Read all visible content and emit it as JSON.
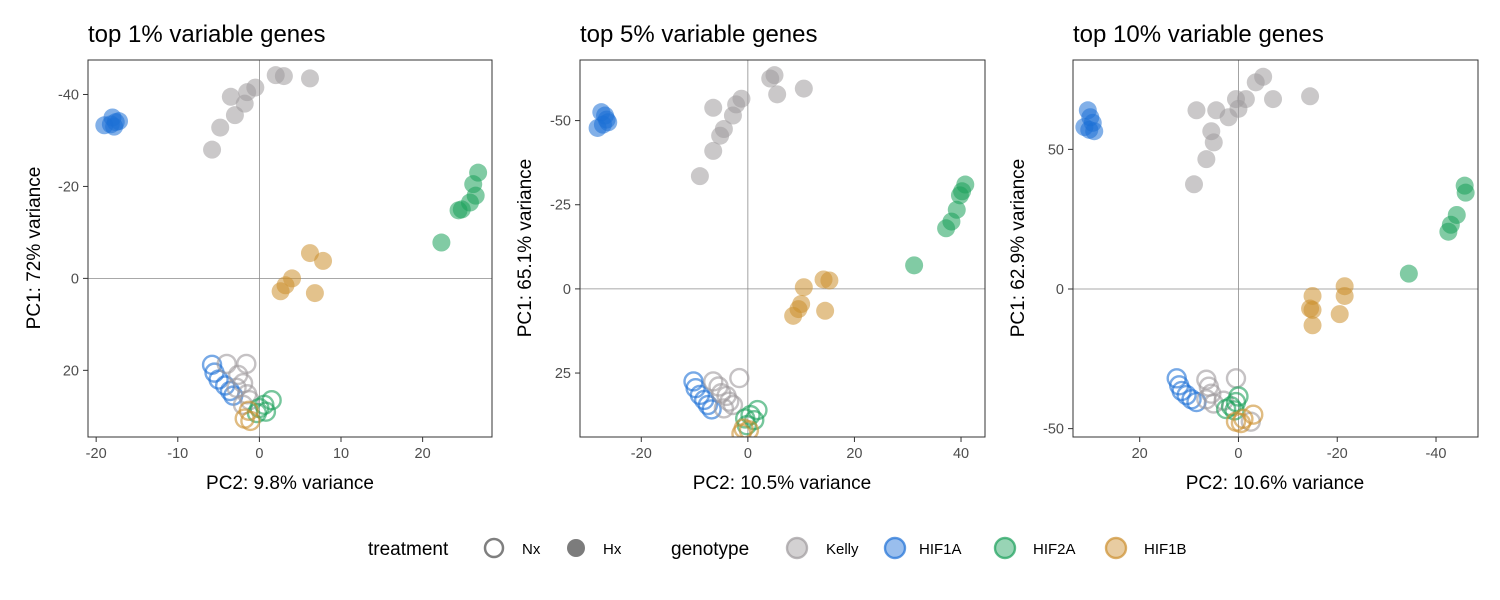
{
  "colors": {
    "Kelly": "#9e9a9c",
    "HIF1A": "#1c6fd6",
    "HIF2A": "#1aa05a",
    "HIF1B": "#cc8f2e"
  },
  "legend": {
    "treatment_title": "treatment",
    "treatment_items": [
      {
        "label": "Nx",
        "filled": false
      },
      {
        "label": "Hx",
        "filled": true
      }
    ],
    "genotype_title": "genotype",
    "genotype_items": [
      {
        "label": "Kelly"
      },
      {
        "label": "HIF1A"
      },
      {
        "label": "HIF2A"
      },
      {
        "label": "HIF1B"
      }
    ]
  },
  "chart_data": [
    {
      "type": "scatter",
      "title": "top 1% variable genes",
      "xlabel": "PC2: 9.8% variance",
      "ylabel": "PC1: 72% variance",
      "xlim": [
        -21,
        28.5
      ],
      "ylim": [
        -47.5,
        34.5
      ],
      "y_reversed": true,
      "x_reversed": false,
      "xticks": [
        -20,
        -10,
        0,
        10,
        20
      ],
      "yticks": [
        -40,
        -20,
        0,
        20
      ],
      "ytick_labels": [
        "-40",
        "-20",
        "0",
        "20"
      ],
      "reference_lines": {
        "x": 0,
        "y": 0
      },
      "grid": false,
      "points": [
        {
          "x": -18,
          "y": -35,
          "g": "HIF1A",
          "t": "Hx"
        },
        {
          "x": -17.6,
          "y": -34,
          "g": "HIF1A",
          "t": "Hx"
        },
        {
          "x": -18.2,
          "y": -33.5,
          "g": "HIF1A",
          "t": "Hx"
        },
        {
          "x": -17.8,
          "y": -33,
          "g": "HIF1A",
          "t": "Hx"
        },
        {
          "x": -19,
          "y": -33.3,
          "g": "HIF1A",
          "t": "Hx"
        },
        {
          "x": -17.2,
          "y": -34.2,
          "g": "HIF1A",
          "t": "Hx"
        },
        {
          "x": 3,
          "y": -44,
          "g": "Kelly",
          "t": "Hx"
        },
        {
          "x": 2,
          "y": -44.2,
          "g": "Kelly",
          "t": "Hx"
        },
        {
          "x": 6.2,
          "y": -43.5,
          "g": "Kelly",
          "t": "Hx"
        },
        {
          "x": -0.5,
          "y": -41.5,
          "g": "Kelly",
          "t": "Hx"
        },
        {
          "x": -1.5,
          "y": -40.5,
          "g": "Kelly",
          "t": "Hx"
        },
        {
          "x": -3.5,
          "y": -39.5,
          "g": "Kelly",
          "t": "Hx"
        },
        {
          "x": -1.8,
          "y": -38,
          "g": "Kelly",
          "t": "Hx"
        },
        {
          "x": -3,
          "y": -35.5,
          "g": "Kelly",
          "t": "Hx"
        },
        {
          "x": -4.8,
          "y": -32.8,
          "g": "Kelly",
          "t": "Hx"
        },
        {
          "x": -5.8,
          "y": -28,
          "g": "Kelly",
          "t": "Hx"
        },
        {
          "x": 26.8,
          "y": -23,
          "g": "HIF2A",
          "t": "Hx"
        },
        {
          "x": 26.2,
          "y": -20.5,
          "g": "HIF2A",
          "t": "Hx"
        },
        {
          "x": 26.5,
          "y": -18,
          "g": "HIF2A",
          "t": "Hx"
        },
        {
          "x": 25.8,
          "y": -16.5,
          "g": "HIF2A",
          "t": "Hx"
        },
        {
          "x": 24.8,
          "y": -15,
          "g": "HIF2A",
          "t": "Hx"
        },
        {
          "x": 24.4,
          "y": -14.8,
          "g": "HIF2A",
          "t": "Hx"
        },
        {
          "x": 22.3,
          "y": -7.8,
          "g": "HIF2A",
          "t": "Hx"
        },
        {
          "x": 6.2,
          "y": -5.5,
          "g": "HIF1B",
          "t": "Hx"
        },
        {
          "x": 7.8,
          "y": -3.8,
          "g": "HIF1B",
          "t": "Hx"
        },
        {
          "x": 4,
          "y": 0,
          "g": "HIF1B",
          "t": "Hx"
        },
        {
          "x": 3.2,
          "y": 1.5,
          "g": "HIF1B",
          "t": "Hx"
        },
        {
          "x": 2.6,
          "y": 2.8,
          "g": "HIF1B",
          "t": "Hx"
        },
        {
          "x": 6.8,
          "y": 3.2,
          "g": "HIF1B",
          "t": "Hx"
        },
        {
          "x": -5.8,
          "y": 18.8,
          "g": "HIF1A",
          "t": "Nx"
        },
        {
          "x": -5.5,
          "y": 20.5,
          "g": "HIF1A",
          "t": "Nx"
        },
        {
          "x": -5,
          "y": 22,
          "g": "HIF1A",
          "t": "Nx"
        },
        {
          "x": -4.2,
          "y": 23.3,
          "g": "HIF1A",
          "t": "Nx"
        },
        {
          "x": -3.6,
          "y": 24.5,
          "g": "HIF1A",
          "t": "Nx"
        },
        {
          "x": -3.2,
          "y": 25.5,
          "g": "HIF1A",
          "t": "Nx"
        },
        {
          "x": -4,
          "y": 18.6,
          "g": "Kelly",
          "t": "Nx"
        },
        {
          "x": -1.6,
          "y": 18.6,
          "g": "Kelly",
          "t": "Nx"
        },
        {
          "x": -2.6,
          "y": 21,
          "g": "Kelly",
          "t": "Nx"
        },
        {
          "x": -2,
          "y": 22.8,
          "g": "Kelly",
          "t": "Nx"
        },
        {
          "x": -2.8,
          "y": 23.8,
          "g": "Kelly",
          "t": "Nx"
        },
        {
          "x": -1.5,
          "y": 25.2,
          "g": "Kelly",
          "t": "Nx"
        },
        {
          "x": -1.2,
          "y": 26.5,
          "g": "Kelly",
          "t": "Nx"
        },
        {
          "x": -2,
          "y": 27.5,
          "g": "Kelly",
          "t": "Nx"
        },
        {
          "x": 1.5,
          "y": 26.5,
          "g": "HIF2A",
          "t": "Nx"
        },
        {
          "x": 0.6,
          "y": 27.5,
          "g": "HIF2A",
          "t": "Nx"
        },
        {
          "x": 0,
          "y": 28.2,
          "g": "HIF2A",
          "t": "Nx"
        },
        {
          "x": 0.8,
          "y": 29,
          "g": "HIF2A",
          "t": "Nx"
        },
        {
          "x": -0.3,
          "y": 29.3,
          "g": "HIF2A",
          "t": "Nx"
        },
        {
          "x": -1.3,
          "y": 28.8,
          "g": "HIF1B",
          "t": "Nx"
        },
        {
          "x": -1.8,
          "y": 30.5,
          "g": "HIF1B",
          "t": "Nx"
        },
        {
          "x": -1.1,
          "y": 31,
          "g": "HIF1B",
          "t": "Nx"
        }
      ]
    },
    {
      "type": "scatter",
      "title": "top 5% variable genes",
      "xlabel": "PC2: 10.5% variance",
      "ylabel": "PC1: 65.1% variance",
      "xlim": [
        -31.5,
        44.5
      ],
      "ylim": [
        -68,
        44
      ],
      "y_reversed": true,
      "x_reversed": false,
      "xticks": [
        -20,
        0,
        20,
        40
      ],
      "yticks": [
        -50,
        -25,
        0,
        25
      ],
      "ytick_labels": [
        "-50",
        "-25",
        "0",
        "25"
      ],
      "reference_lines": {
        "x": 0,
        "y": 0
      },
      "grid": false,
      "points": [
        {
          "x": -26.8,
          "y": -51.5,
          "g": "HIF1A",
          "t": "Hx"
        },
        {
          "x": -26.5,
          "y": -50.3,
          "g": "HIF1A",
          "t": "Hx"
        },
        {
          "x": -26.2,
          "y": -49.5,
          "g": "HIF1A",
          "t": "Hx"
        },
        {
          "x": -27.2,
          "y": -48.8,
          "g": "HIF1A",
          "t": "Hx"
        },
        {
          "x": -27.5,
          "y": -52.5,
          "g": "HIF1A",
          "t": "Hx"
        },
        {
          "x": -28.2,
          "y": -47.8,
          "g": "HIF1A",
          "t": "Hx"
        },
        {
          "x": 4.2,
          "y": -62.5,
          "g": "Kelly",
          "t": "Hx"
        },
        {
          "x": 5,
          "y": -63.5,
          "g": "Kelly",
          "t": "Hx"
        },
        {
          "x": 10.5,
          "y": -59.5,
          "g": "Kelly",
          "t": "Hx"
        },
        {
          "x": 5.5,
          "y": -57.8,
          "g": "Kelly",
          "t": "Hx"
        },
        {
          "x": -1.2,
          "y": -56.5,
          "g": "Kelly",
          "t": "Hx"
        },
        {
          "x": -2.2,
          "y": -54.8,
          "g": "Kelly",
          "t": "Hx"
        },
        {
          "x": -6.5,
          "y": -53.8,
          "g": "Kelly",
          "t": "Hx"
        },
        {
          "x": -2.8,
          "y": -51.5,
          "g": "Kelly",
          "t": "Hx"
        },
        {
          "x": -4.5,
          "y": -47.5,
          "g": "Kelly",
          "t": "Hx"
        },
        {
          "x": -5.2,
          "y": -45.5,
          "g": "Kelly",
          "t": "Hx"
        },
        {
          "x": -6.5,
          "y": -41,
          "g": "Kelly",
          "t": "Hx"
        },
        {
          "x": -9,
          "y": -33.5,
          "g": "Kelly",
          "t": "Hx"
        },
        {
          "x": 40.8,
          "y": -31,
          "g": "HIF2A",
          "t": "Hx"
        },
        {
          "x": 40.2,
          "y": -29,
          "g": "HIF2A",
          "t": "Hx"
        },
        {
          "x": 39.8,
          "y": -27.8,
          "g": "HIF2A",
          "t": "Hx"
        },
        {
          "x": 39.2,
          "y": -23.5,
          "g": "HIF2A",
          "t": "Hx"
        },
        {
          "x": 38.2,
          "y": -20,
          "g": "HIF2A",
          "t": "Hx"
        },
        {
          "x": 37.2,
          "y": -18,
          "g": "HIF2A",
          "t": "Hx"
        },
        {
          "x": 31.2,
          "y": -7,
          "g": "HIF2A",
          "t": "Hx"
        },
        {
          "x": 15.3,
          "y": -2.5,
          "g": "HIF1B",
          "t": "Hx"
        },
        {
          "x": 14.2,
          "y": -2.8,
          "g": "HIF1B",
          "t": "Hx"
        },
        {
          "x": 10.5,
          "y": -0.5,
          "g": "HIF1B",
          "t": "Hx"
        },
        {
          "x": 10,
          "y": 4.5,
          "g": "HIF1B",
          "t": "Hx"
        },
        {
          "x": 9.5,
          "y": 6,
          "g": "HIF1B",
          "t": "Hx"
        },
        {
          "x": 14.5,
          "y": 6.5,
          "g": "HIF1B",
          "t": "Hx"
        },
        {
          "x": 8.5,
          "y": 8,
          "g": "HIF1B",
          "t": "Hx"
        },
        {
          "x": -10.2,
          "y": 27.5,
          "g": "HIF1A",
          "t": "Nx"
        },
        {
          "x": -9.8,
          "y": 29.5,
          "g": "HIF1A",
          "t": "Nx"
        },
        {
          "x": -9,
          "y": 31.5,
          "g": "HIF1A",
          "t": "Nx"
        },
        {
          "x": -8.2,
          "y": 33,
          "g": "HIF1A",
          "t": "Nx"
        },
        {
          "x": -7.5,
          "y": 34.5,
          "g": "HIF1A",
          "t": "Nx"
        },
        {
          "x": -6.8,
          "y": 35.8,
          "g": "HIF1A",
          "t": "Nx"
        },
        {
          "x": -1.6,
          "y": 26.5,
          "g": "Kelly",
          "t": "Nx"
        },
        {
          "x": -6.5,
          "y": 27.5,
          "g": "Kelly",
          "t": "Nx"
        },
        {
          "x": -5.5,
          "y": 29,
          "g": "Kelly",
          "t": "Nx"
        },
        {
          "x": -5,
          "y": 31,
          "g": "Kelly",
          "t": "Nx"
        },
        {
          "x": -4,
          "y": 31.8,
          "g": "Kelly",
          "t": "Nx"
        },
        {
          "x": -3.5,
          "y": 33.5,
          "g": "Kelly",
          "t": "Nx"
        },
        {
          "x": -2.8,
          "y": 34.5,
          "g": "Kelly",
          "t": "Nx"
        },
        {
          "x": -4.5,
          "y": 35.5,
          "g": "Kelly",
          "t": "Nx"
        },
        {
          "x": 1.8,
          "y": 36,
          "g": "HIF2A",
          "t": "Nx"
        },
        {
          "x": 0.5,
          "y": 37.5,
          "g": "HIF2A",
          "t": "Nx"
        },
        {
          "x": -0.5,
          "y": 38.5,
          "g": "HIF2A",
          "t": "Nx"
        },
        {
          "x": 1.2,
          "y": 39,
          "g": "HIF2A",
          "t": "Nx"
        },
        {
          "x": -0.2,
          "y": 40.5,
          "g": "HIF2A",
          "t": "Nx"
        },
        {
          "x": -0.8,
          "y": 41.5,
          "g": "HIF1B",
          "t": "Nx"
        },
        {
          "x": 0.2,
          "y": 42,
          "g": "HIF1B",
          "t": "Nx"
        },
        {
          "x": -1.2,
          "y": 43,
          "g": "HIF1B",
          "t": "Nx"
        }
      ]
    },
    {
      "type": "scatter",
      "title": "top 10% variable genes",
      "xlabel": "PC2: 10.6% variance",
      "ylabel": "PC1: 62.9% variance",
      "xlim": [
        33.5,
        -48.5
      ],
      "ylim": [
        82,
        -53
      ],
      "y_reversed": false,
      "x_reversed": true,
      "xticks": [
        20,
        0,
        -20,
        -40
      ],
      "yticks": [
        50,
        0,
        -50
      ],
      "ytick_labels": [
        "50",
        "0",
        "-50"
      ],
      "reference_lines": {
        "x": 0,
        "y": 0
      },
      "grid": false,
      "points": [
        {
          "x": 30.5,
          "y": 64,
          "g": "HIF1A",
          "t": "Hx"
        },
        {
          "x": 30,
          "y": 61.5,
          "g": "HIF1A",
          "t": "Hx"
        },
        {
          "x": 29.5,
          "y": 59.5,
          "g": "HIF1A",
          "t": "Hx"
        },
        {
          "x": 31.2,
          "y": 58,
          "g": "HIF1A",
          "t": "Hx"
        },
        {
          "x": 30.2,
          "y": 57,
          "g": "HIF1A",
          "t": "Hx"
        },
        {
          "x": 29.2,
          "y": 56.5,
          "g": "HIF1A",
          "t": "Hx"
        },
        {
          "x": -5,
          "y": 76,
          "g": "Kelly",
          "t": "Hx"
        },
        {
          "x": -3.5,
          "y": 74,
          "g": "Kelly",
          "t": "Hx"
        },
        {
          "x": -7,
          "y": 68,
          "g": "Kelly",
          "t": "Hx"
        },
        {
          "x": -14.5,
          "y": 69,
          "g": "Kelly",
          "t": "Hx"
        },
        {
          "x": -1.5,
          "y": 68,
          "g": "Kelly",
          "t": "Hx"
        },
        {
          "x": 0.5,
          "y": 68,
          "g": "Kelly",
          "t": "Hx"
        },
        {
          "x": 0,
          "y": 64.5,
          "g": "Kelly",
          "t": "Hx"
        },
        {
          "x": 4.5,
          "y": 64,
          "g": "Kelly",
          "t": "Hx"
        },
        {
          "x": 8.5,
          "y": 64,
          "g": "Kelly",
          "t": "Hx"
        },
        {
          "x": 2,
          "y": 61.5,
          "g": "Kelly",
          "t": "Hx"
        },
        {
          "x": 5.5,
          "y": 56.5,
          "g": "Kelly",
          "t": "Hx"
        },
        {
          "x": 5,
          "y": 52.5,
          "g": "Kelly",
          "t": "Hx"
        },
        {
          "x": 6.5,
          "y": 46.5,
          "g": "Kelly",
          "t": "Hx"
        },
        {
          "x": 9,
          "y": 37.5,
          "g": "Kelly",
          "t": "Hx"
        },
        {
          "x": -45.8,
          "y": 37,
          "g": "HIF2A",
          "t": "Hx"
        },
        {
          "x": -46,
          "y": 34.5,
          "g": "HIF2A",
          "t": "Hx"
        },
        {
          "x": -44.2,
          "y": 26.5,
          "g": "HIF2A",
          "t": "Hx"
        },
        {
          "x": -43,
          "y": 23,
          "g": "HIF2A",
          "t": "Hx"
        },
        {
          "x": -42.5,
          "y": 20.5,
          "g": "HIF2A",
          "t": "Hx"
        },
        {
          "x": -34.5,
          "y": 5.5,
          "g": "HIF2A",
          "t": "Hx"
        },
        {
          "x": -21.5,
          "y": 1,
          "g": "HIF1B",
          "t": "Hx"
        },
        {
          "x": -21.5,
          "y": -2.5,
          "g": "HIF1B",
          "t": "Hx"
        },
        {
          "x": -15,
          "y": -7.5,
          "g": "HIF1B",
          "t": "Hx"
        },
        {
          "x": -14.5,
          "y": -7,
          "g": "HIF1B",
          "t": "Hx"
        },
        {
          "x": -20.5,
          "y": -9,
          "g": "HIF1B",
          "t": "Hx"
        },
        {
          "x": -15,
          "y": -13,
          "g": "HIF1B",
          "t": "Hx"
        },
        {
          "x": -15,
          "y": -2.5,
          "g": "HIF1B",
          "t": "Hx"
        },
        {
          "x": 12.5,
          "y": -32,
          "g": "HIF1A",
          "t": "Nx"
        },
        {
          "x": 12,
          "y": -34.5,
          "g": "HIF1A",
          "t": "Nx"
        },
        {
          "x": 11.5,
          "y": -36.5,
          "g": "HIF1A",
          "t": "Nx"
        },
        {
          "x": 10.5,
          "y": -38,
          "g": "HIF1A",
          "t": "Nx"
        },
        {
          "x": 9.5,
          "y": -39.5,
          "g": "HIF1A",
          "t": "Nx"
        },
        {
          "x": 8.5,
          "y": -40.5,
          "g": "HIF1A",
          "t": "Nx"
        },
        {
          "x": 0.5,
          "y": -32,
          "g": "Kelly",
          "t": "Nx"
        },
        {
          "x": 6.5,
          "y": -32.5,
          "g": "Kelly",
          "t": "Nx"
        },
        {
          "x": 6,
          "y": -35,
          "g": "Kelly",
          "t": "Nx"
        },
        {
          "x": 5.5,
          "y": -37.5,
          "g": "Kelly",
          "t": "Nx"
        },
        {
          "x": 6.5,
          "y": -39.5,
          "g": "Kelly",
          "t": "Nx"
        },
        {
          "x": 5,
          "y": -41,
          "g": "Kelly",
          "t": "Nx"
        },
        {
          "x": -2.5,
          "y": -47.5,
          "g": "Kelly",
          "t": "Nx"
        },
        {
          "x": 3,
          "y": -40,
          "g": "Kelly",
          "t": "Nx"
        },
        {
          "x": 0,
          "y": -38.5,
          "g": "HIF2A",
          "t": "Nx"
        },
        {
          "x": 0.5,
          "y": -40.5,
          "g": "HIF2A",
          "t": "Nx"
        },
        {
          "x": 1.5,
          "y": -42,
          "g": "HIF2A",
          "t": "Nx"
        },
        {
          "x": 2.5,
          "y": -43,
          "g": "HIF2A",
          "t": "Nx"
        },
        {
          "x": 0.8,
          "y": -43.5,
          "g": "HIF2A",
          "t": "Nx"
        },
        {
          "x": -3,
          "y": -45,
          "g": "HIF1B",
          "t": "Nx"
        },
        {
          "x": -1,
          "y": -46.5,
          "g": "HIF1B",
          "t": "Nx"
        },
        {
          "x": 0.5,
          "y": -47.5,
          "g": "HIF1B",
          "t": "Nx"
        },
        {
          "x": -0.5,
          "y": -48,
          "g": "HIF1B",
          "t": "Nx"
        }
      ]
    }
  ]
}
